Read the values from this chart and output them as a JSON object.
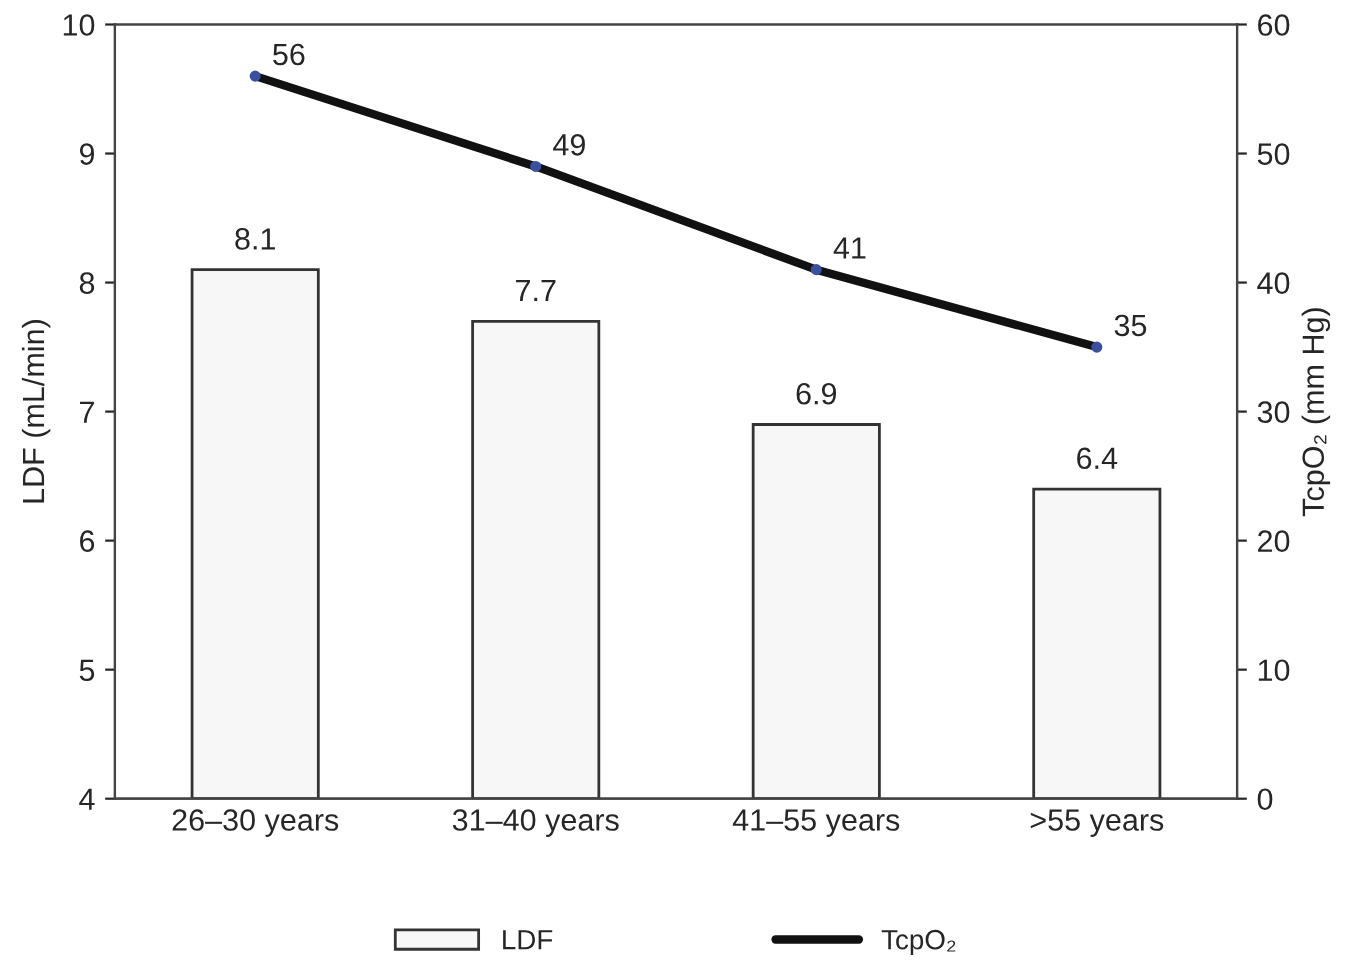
{
  "chart_data": {
    "type": "bar",
    "categories": [
      "26–30 years",
      "31–40 years",
      "41–55 years",
      ">55 years"
    ],
    "ylabel": "LDF (mL/min)",
    "y2label": "TcpO₂ (mm Hg)",
    "ylim": [
      4,
      10
    ],
    "yticks": [
      4,
      5,
      6,
      7,
      8,
      9,
      10
    ],
    "y2lim": [
      0,
      60
    ],
    "y2ticks": [
      0,
      10,
      20,
      30,
      40,
      50,
      60
    ],
    "series": [
      {
        "name": "LDF",
        "color": "#f7f7f7",
        "values": [
          8.1,
          7.7,
          6.9,
          6.4
        ]
      },
      {
        "name": "TcpO₂",
        "type": "line",
        "axis": "y2",
        "color": "#111111",
        "marker": "circle",
        "values": [
          56,
          49,
          41,
          35
        ]
      }
    ],
    "data_labels": true,
    "legend": "bottom",
    "grid": false
  }
}
